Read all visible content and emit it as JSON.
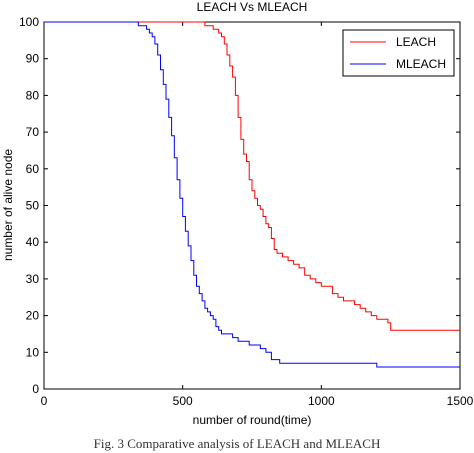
{
  "caption": "Fig. 3 Comparative analysis of LEACH and MLEACH",
  "chart_data": {
    "type": "line",
    "title": "LEACH Vs MLEACH",
    "xlabel": "number of round(time)",
    "ylabel": "number of alive node",
    "xlim": [
      0,
      1500
    ],
    "ylim": [
      0,
      100
    ],
    "xticks": [
      0,
      500,
      1000,
      1500
    ],
    "yticks": [
      0,
      10,
      20,
      30,
      40,
      50,
      60,
      70,
      80,
      90,
      100
    ],
    "grid": false,
    "legend_position": "top-right",
    "series": [
      {
        "name": "LEACH",
        "color": "#ff0000",
        "x": [
          0,
          570,
          580,
          600,
          610,
          620,
          630,
          640,
          650,
          660,
          670,
          680,
          690,
          700,
          710,
          720,
          730,
          740,
          750,
          760,
          770,
          780,
          790,
          800,
          810,
          820,
          830,
          840,
          860,
          880,
          900,
          920,
          940,
          960,
          980,
          1000,
          1020,
          1040,
          1060,
          1080,
          1100,
          1120,
          1140,
          1160,
          1180,
          1200,
          1240,
          1250,
          1300,
          1500
        ],
        "y": [
          100,
          100,
          99,
          99,
          98,
          98,
          97,
          96,
          94,
          91,
          88,
          85,
          80,
          74,
          68,
          64,
          62,
          57,
          54,
          52,
          50,
          49,
          47,
          45,
          44,
          41,
          38,
          37,
          36,
          35,
          34,
          33,
          31,
          30,
          29,
          28,
          28,
          26,
          25,
          24,
          24,
          23,
          22,
          21,
          20,
          19,
          18,
          16,
          16,
          16
        ]
      },
      {
        "name": "MLEACH",
        "color": "#0000ff",
        "x": [
          0,
          320,
          340,
          370,
          380,
          390,
          400,
          410,
          420,
          430,
          440,
          450,
          460,
          470,
          480,
          490,
          500,
          510,
          520,
          530,
          540,
          550,
          560,
          570,
          580,
          590,
          600,
          610,
          620,
          630,
          640,
          650,
          680,
          700,
          740,
          780,
          800,
          820,
          850,
          900,
          1000,
          1100,
          1180,
          1200,
          1500
        ],
        "y": [
          100,
          100,
          99,
          98,
          97,
          96,
          94,
          91,
          87,
          83,
          79,
          74,
          69,
          63,
          57,
          52,
          47,
          43,
          39,
          35,
          31,
          28,
          26,
          24,
          22,
          21,
          20,
          19,
          17,
          16,
          15,
          15,
          14,
          13,
          12,
          11,
          10,
          8,
          7,
          7,
          7,
          7,
          7,
          6,
          6
        ]
      }
    ]
  }
}
